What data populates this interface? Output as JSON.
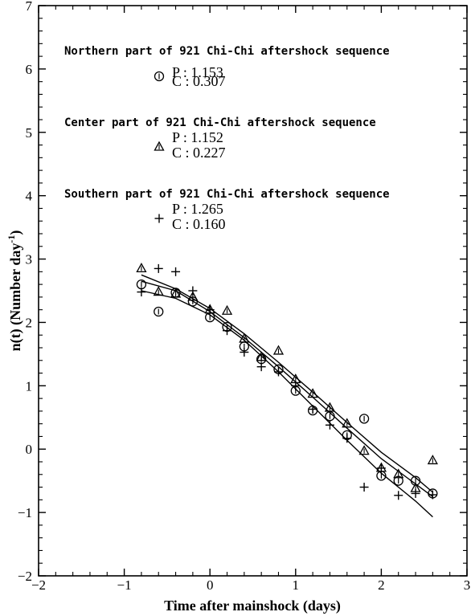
{
  "chart_data": {
    "type": "scatter",
    "xlabel": "Time after mainshock (days)",
    "ylabel": "n(t) (Number day",
    "ylabel_superscript": "-1",
    "ylabel_suffix": ")",
    "xlim": [
      -2,
      3
    ],
    "ylim": [
      -2,
      7
    ],
    "xticks": [
      -2,
      -1,
      0,
      1,
      2,
      3
    ],
    "yticks": [
      -2,
      -1,
      0,
      1,
      2,
      3,
      4,
      5,
      6,
      7
    ],
    "grid": false,
    "legend_position": "top-left",
    "series": [
      {
        "name": "Northern part of 921 Chi-Chi aftershock sequence",
        "marker": "circle",
        "P_label": "P : 1.153",
        "C_label": "C : 0.307",
        "points": [
          [
            -0.8,
            2.6
          ],
          [
            -0.6,
            2.17
          ],
          [
            -0.4,
            2.47
          ],
          [
            -0.2,
            2.33
          ],
          [
            0.0,
            2.08
          ],
          [
            0.2,
            1.93
          ],
          [
            0.4,
            1.62
          ],
          [
            0.6,
            1.42
          ],
          [
            0.8,
            1.26
          ],
          [
            1.0,
            0.92
          ],
          [
            1.2,
            0.61
          ],
          [
            1.4,
            0.52
          ],
          [
            1.6,
            0.22
          ],
          [
            1.8,
            0.48
          ],
          [
            2.0,
            -0.42
          ],
          [
            2.2,
            -0.5
          ],
          [
            2.4,
            -0.5
          ],
          [
            2.6,
            -0.7
          ]
        ],
        "fit": [
          [
            -0.8,
            2.65
          ],
          [
            -0.4,
            2.5
          ],
          [
            0.0,
            2.17
          ],
          [
            0.4,
            1.76
          ],
          [
            0.8,
            1.3
          ],
          [
            1.2,
            0.82
          ],
          [
            1.6,
            0.33
          ],
          [
            2.0,
            -0.15
          ],
          [
            2.4,
            -0.55
          ],
          [
            2.6,
            -0.75
          ]
        ]
      },
      {
        "name": "Center part of 921 Chi-Chi aftershock sequence",
        "marker": "triangle",
        "P_label": "P : 1.152",
        "C_label": "C : 0.227",
        "points": [
          [
            -0.8,
            2.85
          ],
          [
            -0.6,
            2.48
          ],
          [
            -0.4,
            2.45
          ],
          [
            -0.2,
            2.4
          ],
          [
            0.0,
            2.2
          ],
          [
            0.2,
            2.18
          ],
          [
            0.4,
            1.74
          ],
          [
            0.6,
            1.45
          ],
          [
            0.8,
            1.55
          ],
          [
            1.0,
            1.1
          ],
          [
            1.2,
            0.87
          ],
          [
            1.4,
            0.65
          ],
          [
            1.6,
            0.4
          ],
          [
            1.8,
            -0.03
          ],
          [
            2.0,
            -0.3
          ],
          [
            2.2,
            -0.4
          ],
          [
            2.4,
            -0.62
          ],
          [
            2.6,
            -0.18
          ]
        ],
        "fit": [
          [
            -0.8,
            2.75
          ],
          [
            -0.4,
            2.53
          ],
          [
            0.0,
            2.22
          ],
          [
            0.4,
            1.82
          ],
          [
            0.8,
            1.37
          ],
          [
            1.2,
            0.9
          ],
          [
            1.6,
            0.42
          ],
          [
            2.0,
            -0.05
          ],
          [
            2.4,
            -0.45
          ],
          [
            2.6,
            -0.68
          ]
        ]
      },
      {
        "name": "Southern part of 921 Chi-Chi aftershock sequence",
        "marker": "plus",
        "P_label": "P : 1.265",
        "C_label": "C : 0.160",
        "points": [
          [
            -0.8,
            2.48
          ],
          [
            -0.6,
            2.85
          ],
          [
            -0.4,
            2.8
          ],
          [
            -0.2,
            2.5
          ],
          [
            0.0,
            2.2
          ],
          [
            0.2,
            1.87
          ],
          [
            0.4,
            1.53
          ],
          [
            0.6,
            1.3
          ],
          [
            0.8,
            1.22
          ],
          [
            1.0,
            1.0
          ],
          [
            1.2,
            0.63
          ],
          [
            1.4,
            0.38
          ],
          [
            1.6,
            0.17
          ],
          [
            1.8,
            -0.6
          ],
          [
            2.0,
            -0.3
          ],
          [
            2.2,
            -0.73
          ],
          [
            2.4,
            -0.7
          ],
          [
            2.6,
            -0.72
          ]
        ],
        "fit": [
          [
            -0.8,
            2.5
          ],
          [
            -0.4,
            2.38
          ],
          [
            0.0,
            2.12
          ],
          [
            0.4,
            1.72
          ],
          [
            0.8,
            1.22
          ],
          [
            1.2,
            0.68
          ],
          [
            1.6,
            0.14
          ],
          [
            2.0,
            -0.38
          ],
          [
            2.4,
            -0.82
          ],
          [
            2.6,
            -1.07
          ]
        ]
      }
    ]
  }
}
